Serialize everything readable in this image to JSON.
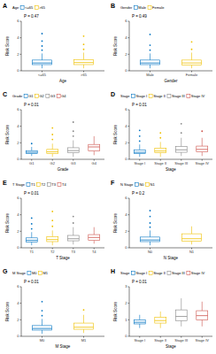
{
  "chart_data": [
    {
      "type": "box",
      "title": "A",
      "subtitle": "P = 0.47",
      "xlabel": "Age",
      "ylabel": "Risk Score",
      "categories": [
        "<=65",
        ">65"
      ],
      "colors": [
        "#0073C2",
        "#EFC000"
      ],
      "values": [
        [
          0.3,
          0.75,
          0.95,
          1.3,
          2.1
        ],
        [
          0.3,
          0.75,
          1.0,
          1.35,
          2.2
        ]
      ],
      "outliers": [
        [
          2.5,
          3,
          3.6,
          4.5
        ],
        [
          2.6,
          3.2,
          4.2
        ]
      ],
      "ylim": [
        0,
        6
      ],
      "yticks": [
        0,
        2,
        4,
        6
      ]
    },
    {
      "type": "box",
      "title": "B",
      "subtitle": "P = 0.49",
      "xlabel": "Gender",
      "ylabel": "Risk Score",
      "categories": [
        "Male",
        "Female"
      ],
      "colors": [
        "#0073C2",
        "#EFC000"
      ],
      "values": [
        [
          0.3,
          0.75,
          0.95,
          1.3,
          2.1
        ],
        [
          0.3,
          0.7,
          0.95,
          1.3,
          2.2
        ]
      ],
      "outliers": [
        [
          2.5,
          3.1,
          4.4
        ],
        [
          2.6,
          3.5
        ]
      ],
      "ylim": [
        0,
        6
      ],
      "yticks": [
        0,
        2,
        4,
        6
      ]
    },
    {
      "type": "box",
      "title": "C",
      "subtitle": "P = 0.01",
      "xlabel": "Grade",
      "ylabel": "Risk Score",
      "categories": [
        "G1",
        "G2",
        "G3",
        "G4"
      ],
      "colors": [
        "#0073C2",
        "#EFC000",
        "#868686",
        "#CD534C"
      ],
      "values": [
        [
          0.4,
          0.7,
          0.85,
          1.05,
          1.5
        ],
        [
          0.3,
          0.7,
          0.9,
          1.2,
          1.9
        ],
        [
          0.3,
          0.8,
          1.05,
          1.4,
          2.3
        ],
        [
          0.5,
          1.0,
          1.5,
          1.8,
          2.8
        ]
      ],
      "outliers": [
        [
          1.9
        ],
        [
          2.4,
          3,
          3.8
        ],
        [
          2.8,
          3.4,
          4.5
        ],
        []
      ],
      "ylim": [
        0,
        6
      ],
      "yticks": [
        0,
        2,
        4,
        6
      ]
    },
    {
      "type": "box",
      "title": "D",
      "subtitle": "P = 0.01",
      "xlabel": "Stage",
      "ylabel": "Risk Score",
      "categories": [
        "Stage I",
        "Stage II",
        "Stage III",
        "Stage IV"
      ],
      "colors": [
        "#0073C2",
        "#EFC000",
        "#868686",
        "#CD534C"
      ],
      "values": [
        [
          0.3,
          0.7,
          0.85,
          1.15,
          1.8
        ],
        [
          0.3,
          0.8,
          1.0,
          1.35,
          2.1
        ],
        [
          0.4,
          0.85,
          1.15,
          1.55,
          2.6
        ],
        [
          0.4,
          0.9,
          1.2,
          1.6,
          2.6
        ]
      ],
      "outliers": [
        [
          2.2,
          2.8,
          3.5
        ],
        [
          2.6,
          3.2
        ],
        [
          3.2,
          4.3
        ],
        [
          3.4
        ]
      ],
      "ylim": [
        0,
        6
      ],
      "yticks": [
        0,
        2,
        4,
        6
      ]
    },
    {
      "type": "box",
      "title": "E",
      "subtitle": "P = 0.01",
      "xlabel": "T Stage",
      "ylabel": "Risk Score",
      "categories": [
        "T1",
        "T2",
        "T3",
        "T4"
      ],
      "colors": [
        "#0073C2",
        "#EFC000",
        "#868686",
        "#CD534C"
      ],
      "values": [
        [
          0.3,
          0.7,
          0.9,
          1.2,
          1.9
        ],
        [
          0.3,
          0.75,
          1.0,
          1.35,
          2.1
        ],
        [
          0.4,
          0.85,
          1.1,
          1.5,
          2.5
        ],
        [
          0.5,
          0.9,
          1.25,
          1.6,
          2.5
        ]
      ],
      "outliers": [
        [
          2.3,
          2.9,
          3.6
        ],
        [
          2.6,
          3.3,
          4.4
        ],
        [
          3.0,
          3.8
        ],
        []
      ],
      "ylim": [
        0,
        6
      ],
      "yticks": [
        0,
        2,
        4,
        6
      ]
    },
    {
      "type": "box",
      "title": "F",
      "subtitle": "P = 0.2",
      "xlabel": "N Stage",
      "ylabel": "Risk Score",
      "categories": [
        "N0",
        "N1"
      ],
      "colors": [
        "#0073C2",
        "#EFC000"
      ],
      "values": [
        [
          0.3,
          0.75,
          0.95,
          1.3,
          2.1
        ],
        [
          0.4,
          0.8,
          1.1,
          1.7,
          2.6
        ]
      ],
      "outliers": [
        [
          2.5,
          3,
          3.8,
          4.5
        ],
        []
      ],
      "ylim": [
        0,
        6
      ],
      "yticks": [
        0,
        2,
        4,
        6
      ]
    },
    {
      "type": "box",
      "title": "G",
      "subtitle": "P = 0.01",
      "xlabel": "M Stage",
      "ylabel": "Risk Score",
      "categories": [
        "M0",
        "M1"
      ],
      "colors": [
        "#0073C2",
        "#EFC000"
      ],
      "values": [
        [
          0.3,
          0.75,
          0.95,
          1.3,
          2.1
        ],
        [
          0.4,
          0.85,
          1.1,
          1.6,
          2.6
        ]
      ],
      "outliers": [
        [
          2.5,
          3.1,
          4.2
        ],
        [
          3.2
        ]
      ],
      "ylim": [
        0,
        6
      ],
      "yticks": [
        0,
        2,
        4,
        6
      ]
    },
    {
      "type": "box",
      "title": "H",
      "subtitle": "P = 0.01",
      "xlabel": "Stage",
      "ylabel": "Risk Score",
      "categories": [
        "Stage I",
        "Stage II",
        "Stage III",
        "Stage IV"
      ],
      "colors": [
        "#0073C2",
        "#EFC000",
        "#868686",
        "#CD534C"
      ],
      "values": [
        [
          0.5,
          0.75,
          0.85,
          1.0,
          1.3
        ],
        [
          0.5,
          0.8,
          0.95,
          1.15,
          1.5
        ],
        [
          0.6,
          0.95,
          1.2,
          1.6,
          2.3
        ],
        [
          0.6,
          1.0,
          1.25,
          1.55,
          2.1
        ]
      ],
      "outliers": [
        [],
        [],
        [],
        []
      ],
      "ylim": [
        0,
        3
      ],
      "yticks": [
        0,
        1,
        2,
        3
      ]
    }
  ]
}
